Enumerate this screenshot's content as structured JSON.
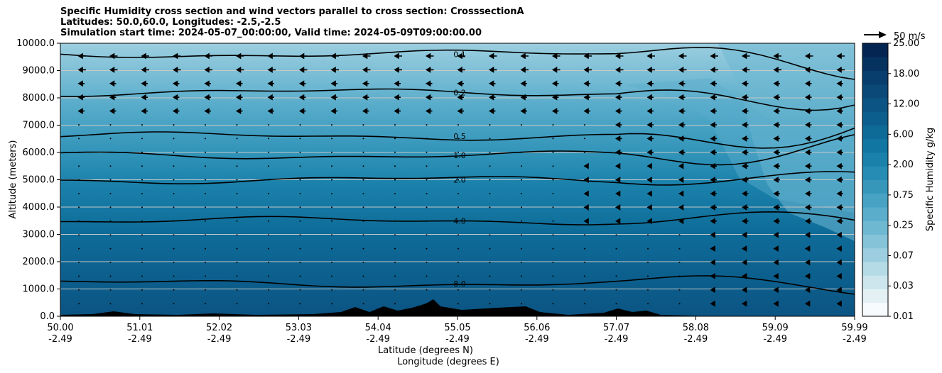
{
  "chart_data": {
    "type": "heatmap",
    "title_lines": [
      "Specific Humidity cross section and wind vectors parallel to cross section: CrosssectionA",
      "Latitudes: 50.0,60.0, Longitudes: -2.5,-2.5",
      "Simulation start time: 2024-05-07_00:00:00, Valid time: 2024-05-09T09:00:00.00"
    ],
    "ylabel": "Altitude (meters)",
    "xlabel_lat": "Latitude (degrees N)",
    "xlabel_lon": "Longitude (degrees E)",
    "ylim": [
      0,
      10000
    ],
    "y_ticks": [
      "0.0",
      "1000.0",
      "2000.0",
      "3000.0",
      "4000.0",
      "5000.0",
      "6000.0",
      "7000.0",
      "8000.0",
      "9000.0",
      "10000.0"
    ],
    "x_ticks": [
      {
        "lat": "50.00",
        "lon": "-2.49"
      },
      {
        "lat": "51.01",
        "lon": "-2.49"
      },
      {
        "lat": "52.02",
        "lon": "-2.49"
      },
      {
        "lat": "53.03",
        "lon": "-2.49"
      },
      {
        "lat": "54.04",
        "lon": "-2.49"
      },
      {
        "lat": "55.05",
        "lon": "-2.49"
      },
      {
        "lat": "56.06",
        "lon": "-2.49"
      },
      {
        "lat": "57.07",
        "lon": "-2.49"
      },
      {
        "lat": "58.08",
        "lon": "-2.49"
      },
      {
        "lat": "59.09",
        "lon": "-2.49"
      },
      {
        "lat": "59.99",
        "lon": "-2.49"
      }
    ],
    "colorbar": {
      "label": "Specific Humidity g/kg",
      "tick_labels": [
        "0.01",
        "0.03",
        "0.07",
        "0.25",
        "0.75",
        "2.00",
        "6.00",
        "12.00",
        "18.00",
        "25.00"
      ],
      "levels": 20,
      "colors": [
        "#f7fbfd",
        "#e3f1f5",
        "#cde6ee",
        "#b5dbe7",
        "#9ccee0",
        "#85c3d9",
        "#6fb8d2",
        "#5aadcb",
        "#48a2c3",
        "#3697bb",
        "#268cb3",
        "#1a81ab",
        "#1276a2",
        "#0e6b98",
        "#0c5f8d",
        "#0b5483",
        "#0a4978",
        "#083e6d",
        "#063260",
        "#042552"
      ]
    },
    "quiver_key": "50 m/s",
    "contour_labels": [
      "0.1",
      "0.2",
      "0.5",
      "1.0",
      "2.0",
      "4.0",
      "8.0"
    ],
    "contour_levels": [
      {
        "label": "0.1",
        "height_m": 9600
      },
      {
        "label": "0.2",
        "height_m": 8200
      },
      {
        "label": "0.5",
        "height_m": 6600
      },
      {
        "label": "1.0",
        "height_m": 5900
      },
      {
        "label": "2.0",
        "height_m": 5000
      },
      {
        "label": "4.0",
        "height_m": 3500
      },
      {
        "label": "8.0",
        "height_m": 1200
      }
    ],
    "grid": true
  },
  "colors": {
    "terrain": "#000000",
    "contour": "#000000",
    "grid": "#c8c8c8"
  }
}
